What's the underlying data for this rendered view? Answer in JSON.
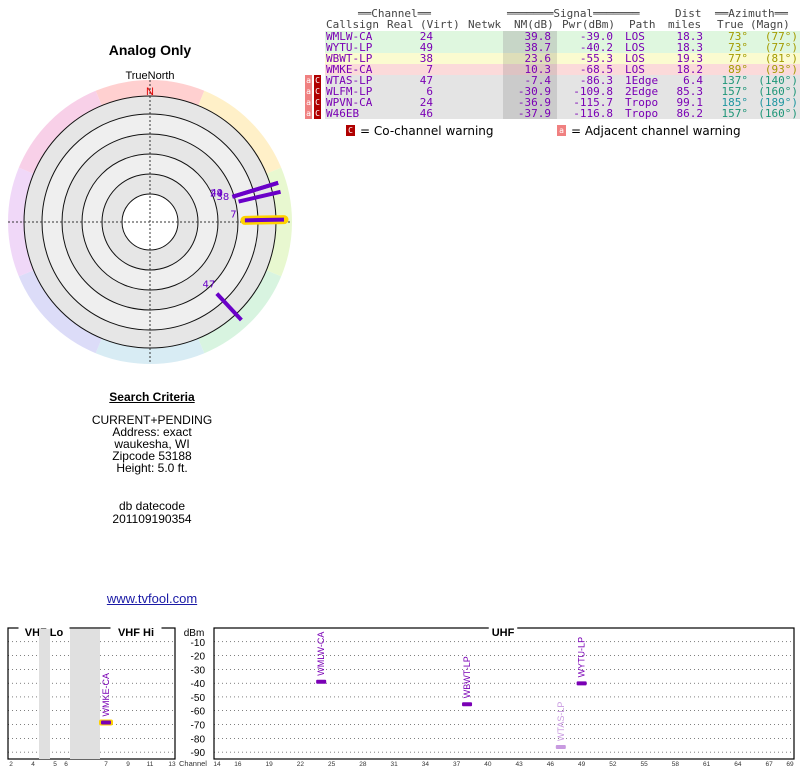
{
  "title": "Analog Only",
  "north_label": "TrueNorth",
  "north_letter": "N",
  "headers": {
    "channel_group": "══Channel══",
    "signal_group": "═══════Signal═══════",
    "azimuth_group": "══Azimuth══",
    "callsign": "Callsign",
    "real": "Real",
    "virt": "(Virt)",
    "netwk": "Netwk",
    "nm": "NM(dB)",
    "pwr": "Pwr(dBm)",
    "path": "Path",
    "dist1": "Dist",
    "dist2": "miles",
    "true": "True",
    "magn": "(Magn)"
  },
  "stations": [
    {
      "callsign": "WMLW-CA",
      "real": "24",
      "nm": "39.8",
      "pwr": "-39.0",
      "path": "LOS",
      "dist": "18.3",
      "az_true": "73°",
      "az_magn": "(77°)",
      "bg": "#dff7df",
      "nm_bg": "#c7d6c7",
      "az_color": "#a39b00",
      "cochannel": false,
      "adjacent": false
    },
    {
      "callsign": "WYTU-LP",
      "real": "49",
      "nm": "38.7",
      "pwr": "-40.2",
      "path": "LOS",
      "dist": "18.3",
      "az_true": "73°",
      "az_magn": "(77°)",
      "bg": "#dff7df",
      "nm_bg": "#c7d6c7",
      "az_color": "#a39b00",
      "cochannel": false,
      "adjacent": false
    },
    {
      "callsign": "WBWT-LP",
      "real": "38",
      "nm": "23.6",
      "pwr": "-55.3",
      "path": "LOS",
      "dist": "19.3",
      "az_true": "77°",
      "az_magn": "(81°)",
      "bg": "#fbfbd0",
      "nm_bg": "#dedeb9",
      "az_color": "#a39b00",
      "cochannel": false,
      "adjacent": false
    },
    {
      "callsign": "WMKE-CA",
      "real": "7",
      "nm": "10.3",
      "pwr": "-68.5",
      "path": "LOS",
      "dist": "18.2",
      "az_true": "89°",
      "az_magn": "(93°)",
      "bg": "#fbdada",
      "nm_bg": "#ddc3c3",
      "az_color": "#a39b00",
      "cochannel": false,
      "adjacent": false
    },
    {
      "callsign": "WTAS-LP",
      "real": "47",
      "nm": "-7.4",
      "pwr": "-86.3",
      "path": "1Edge",
      "dist": "6.4",
      "az_true": "137°",
      "az_magn": "(140°)",
      "bg": "#e4e4e4",
      "nm_bg": "#cbcbcb",
      "az_color": "#1e9678",
      "cochannel": true,
      "adjacent": true
    },
    {
      "callsign": "WLFM-LP",
      "real": "6",
      "nm": "-30.9",
      "pwr": "-109.8",
      "path": "2Edge",
      "dist": "85.3",
      "az_true": "157°",
      "az_magn": "(160°)",
      "bg": "#e4e4e4",
      "nm_bg": "#cbcbcb",
      "az_color": "#1e9678",
      "cochannel": true,
      "adjacent": true
    },
    {
      "callsign": "WPVN-CA",
      "real": "24",
      "nm": "-36.9",
      "pwr": "-115.7",
      "path": "Tropo",
      "dist": "99.1",
      "az_true": "185°",
      "az_magn": "(189°)",
      "bg": "#e4e4e4",
      "nm_bg": "#cbcbcb",
      "az_color": "#1e96a0",
      "cochannel": true,
      "adjacent": true
    },
    {
      "callsign": "W46EB",
      "real": "46",
      "nm": "-37.9",
      "pwr": "-116.8",
      "path": "Tropo",
      "dist": "86.2",
      "az_true": "157°",
      "az_magn": "(160°)",
      "bg": "#e4e4e4",
      "nm_bg": "#cbcbcb",
      "az_color": "#1e9678",
      "cochannel": true,
      "adjacent": true
    }
  ],
  "legend": {
    "co_symbol": "C",
    "co_text": "= Co-channel warning",
    "adj_symbol": "a",
    "adj_text": "= Adjacent channel warning"
  },
  "polar_labels": [
    {
      "text": "24",
      "az": 73
    },
    {
      "text": "49",
      "az": 73
    },
    {
      "text": "38",
      "az": 77
    },
    {
      "text": "7",
      "az": 89
    },
    {
      "text": "47",
      "az": 137
    }
  ],
  "criteria": {
    "heading": "Search Criteria",
    "lines": [
      "CURRENT+PENDING",
      "Address: exact",
      "waukesha, WI",
      "Zipcode 53188",
      "Height: 5.0 ft."
    ],
    "db_label": "db datecode",
    "db_value": "201109190354"
  },
  "link_text": "www.tvfool.com",
  "spectrum": {
    "vhf_lo": "VHF Lo",
    "vhf_hi": "VHF Hi",
    "uhf": "UHF",
    "dbm": "dBm",
    "channel_label": "Channel",
    "db_ticks": [
      "-10",
      "-20",
      "-30",
      "-40",
      "-50",
      "-60",
      "-70",
      "-80",
      "-90"
    ],
    "vhf_lo_ticks": [
      "2",
      "4",
      "5",
      "6"
    ],
    "vhf_hi_ticks": [
      "7",
      "9",
      "11",
      "13"
    ],
    "uhf_ticks": [
      "14",
      "16",
      "19",
      "22",
      "25",
      "28",
      "31",
      "34",
      "37",
      "40",
      "43",
      "46",
      "49",
      "52",
      "55",
      "58",
      "61",
      "64",
      "67",
      "69"
    ],
    "stations": [
      {
        "callsign": "WMKE-CA",
        "channel": 7,
        "dbm": -68.5,
        "color": "#7a00b5",
        "highlight": true
      },
      {
        "callsign": "WMLW-CA",
        "channel": 24,
        "dbm": -39.0,
        "color": "#7a00b5",
        "highlight": false
      },
      {
        "callsign": "WBWT-LP",
        "channel": 38,
        "dbm": -55.3,
        "color": "#7a00b5",
        "highlight": false
      },
      {
        "callsign": "WYTU-LP",
        "channel": 49,
        "dbm": -40.2,
        "color": "#7a00b5",
        "highlight": false
      },
      {
        "callsign": "WTAS-LP",
        "channel": 47,
        "dbm": -86.3,
        "color": "#c89ae0",
        "highlight": false
      }
    ]
  }
}
